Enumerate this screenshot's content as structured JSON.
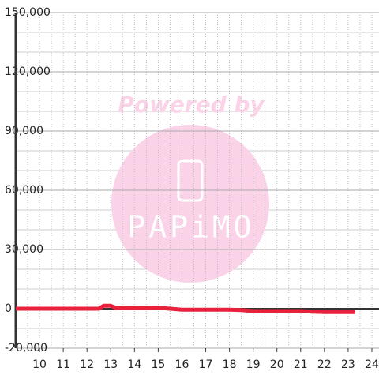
{
  "chart_data": {
    "type": "line",
    "x": [
      9,
      10,
      11,
      12,
      12.5,
      12.7,
      13,
      13.2,
      14,
      15,
      15.5,
      16,
      17,
      18,
      18.5,
      19,
      20,
      21,
      21.5,
      22,
      23,
      23.3
    ],
    "series": [
      {
        "color": "#e8213d",
        "values": [
          0,
          0,
          0,
          0,
          0,
          1500,
          1500,
          500,
          500,
          500,
          0,
          -500,
          -500,
          -500,
          -700,
          -1200,
          -1200,
          -1200,
          -1500,
          -1700,
          -1700,
          -1700
        ]
      }
    ],
    "xlim": [
      9,
      24.3
    ],
    "xticks": [
      10,
      11,
      12,
      13,
      14,
      15,
      16,
      17,
      18,
      19,
      20,
      21,
      22,
      23,
      24
    ],
    "ylim": [
      -20000,
      150000
    ],
    "yticks": [
      {
        "value": -20000,
        "label": "-20,000"
      },
      0,
      {
        "value": 30000,
        "label": "30,000"
      },
      {
        "value": 60000,
        "label": "60,000"
      },
      {
        "value": 90000,
        "label": "90,000"
      },
      {
        "value": 120000,
        "label": "120,000"
      },
      {
        "value": 150000,
        "label": "150,000"
      }
    ],
    "grid": true,
    "watermark": {
      "top": "Powered by",
      "brand": "PAPiMO"
    }
  }
}
